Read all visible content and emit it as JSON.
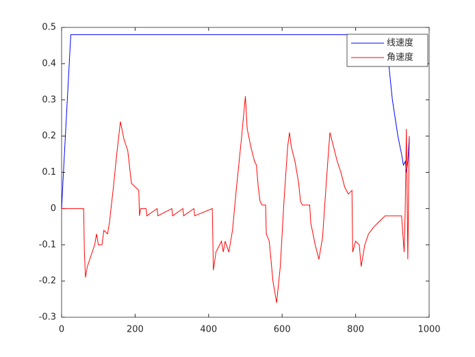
{
  "chart_data": {
    "type": "line",
    "xlim": [
      0,
      1000
    ],
    "xticks": [
      0,
      200,
      400,
      600,
      800,
      1000
    ],
    "ylim": [
      -0.3,
      0.5
    ],
    "yticks": [
      -0.3,
      -0.2,
      -0.1,
      0,
      0.1,
      0.2,
      0.3,
      0.4,
      0.5
    ],
    "legend": "upper right",
    "series": [
      {
        "name": "线速度",
        "color": "#0000ff",
        "x": [
          0,
          5,
          25,
          880,
          890,
          900,
          915,
          925,
          930,
          935,
          938,
          942,
          946
        ],
        "values": [
          0,
          0.1,
          0.48,
          0.48,
          0.4,
          0.3,
          0.2,
          0.15,
          0.12,
          0.13,
          0.1,
          0.13,
          0.2
        ]
      },
      {
        "name": "角速度",
        "color": "#ff0000",
        "x": [
          0,
          60,
          62,
          65,
          70,
          80,
          90,
          95,
          100,
          110,
          115,
          125,
          130,
          140,
          150,
          160,
          170,
          180,
          190,
          200,
          210,
          212,
          215,
          230,
          232,
          260,
          262,
          300,
          302,
          330,
          332,
          360,
          362,
          410,
          413,
          420,
          430,
          435,
          440,
          445,
          455,
          465,
          475,
          490,
          500,
          505,
          515,
          525,
          530,
          535,
          540,
          545,
          555,
          557,
          565,
          575,
          585,
          595,
          605,
          615,
          620,
          625,
          635,
          645,
          650,
          655,
          675,
          678,
          690,
          700,
          710,
          720,
          730,
          740,
          750,
          760,
          770,
          780,
          790,
          792,
          800,
          810,
          815,
          825,
          835,
          850,
          860,
          870,
          880,
          925,
          932,
          935,
          938,
          942,
          946
        ],
        "values": [
          0,
          0,
          -0.12,
          -0.19,
          -0.16,
          -0.13,
          -0.1,
          -0.07,
          -0.1,
          -0.1,
          -0.06,
          -0.07,
          -0.04,
          0.05,
          0.15,
          0.24,
          0.19,
          0.16,
          0.07,
          0.06,
          0.05,
          -0.02,
          0,
          0,
          -0.02,
          0,
          -0.02,
          0,
          -0.02,
          0,
          -0.02,
          0,
          -0.02,
          0,
          -0.17,
          -0.12,
          -0.1,
          -0.09,
          -0.12,
          -0.09,
          -0.12,
          -0.06,
          0.05,
          0.2,
          0.31,
          0.22,
          0.17,
          0.13,
          0.12,
          0.06,
          0.02,
          0.01,
          0.01,
          -0.07,
          -0.09,
          -0.2,
          -0.26,
          -0.16,
          0.02,
          0.17,
          0.21,
          0.17,
          0.13,
          0.07,
          0.02,
          0.01,
          0.01,
          -0.04,
          -0.1,
          -0.14,
          -0.08,
          0.07,
          0.21,
          0.17,
          0.13,
          0.1,
          0.06,
          0.04,
          0.05,
          -0.12,
          -0.09,
          -0.1,
          -0.16,
          -0.1,
          -0.07,
          -0.05,
          -0.04,
          -0.03,
          -0.02,
          -0.02,
          -0.12,
          0,
          0.22,
          -0.14,
          0.2
        ]
      }
    ]
  }
}
